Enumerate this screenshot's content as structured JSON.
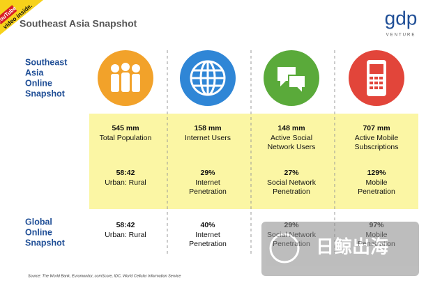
{
  "header": {
    "badge_brand": "YouTube",
    "badge_text": "video inside.",
    "title": "Southeast Asia Snapshot",
    "logo": "gdp",
    "logo_sub": "VENTURE"
  },
  "regional_label": [
    "Southeast",
    "Asia",
    "Online",
    "Snapshot"
  ],
  "global_label": [
    "Global",
    "Online",
    "Snapshot"
  ],
  "columns": [
    {
      "users_value": "545 mm",
      "users_label": [
        "Total Population"
      ],
      "ratio_value": "58:42",
      "ratio_label": [
        "Urban: Rural"
      ],
      "global_value": "58:42",
      "global_label": [
        "Urban: Rural"
      ]
    },
    {
      "users_value": "158 mm",
      "users_label": [
        "Internet Users"
      ],
      "ratio_value": "29%",
      "ratio_label": [
        "Internet",
        "Penetration"
      ],
      "global_value": "40%",
      "global_label": [
        "Internet",
        "Penetration"
      ]
    },
    {
      "users_value": "148 mm",
      "users_label": [
        "Active Social",
        "Network Users"
      ],
      "ratio_value": "27%",
      "ratio_label": [
        "Social Network",
        "Penetration"
      ],
      "global_value": "29%",
      "global_label": [
        "Social Network",
        "Penetration"
      ]
    },
    {
      "users_value": "707 mm",
      "users_label": [
        "Active Mobile",
        "Subscriptions"
      ],
      "ratio_value": "129%",
      "ratio_label": [
        "Mobile",
        "Penetration"
      ],
      "global_value": "97%",
      "global_label": [
        "Mobile",
        "Penetration"
      ]
    }
  ],
  "source": "Source: The World Bank, Euromonitor, comScore, IDC, World Cellular Information Service",
  "watermark": "日鲸出海"
}
